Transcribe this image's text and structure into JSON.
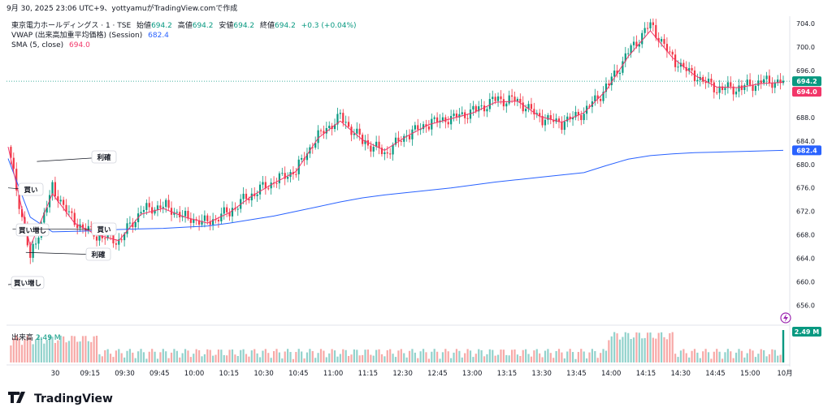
{
  "header": {
    "credit": "9月 30, 2025 23:06 UTC+9、yottyamuがTradingView.comで作成"
  },
  "legend": {
    "symbol": "東京電力ホールディングス · 1 · TSE",
    "open_label": "始値",
    "open": "694.2",
    "high_label": "高値",
    "high": "694.2",
    "low_label": "安値",
    "low": "694.2",
    "close_label": "終値",
    "close": "694.2",
    "change": "+0.3 (+0.04%)",
    "vwap_label": "VWAP (出来高加重平均価格) (Session)",
    "vwap_value": "682.4",
    "sma_label": "SMA (5, close)",
    "sma_value": "694.0"
  },
  "volume_legend": {
    "label": "出来高",
    "value": "2.49 M"
  },
  "price_badges": {
    "last": "694.2",
    "sma": "694.0",
    "vwap": "682.4",
    "volume": "2.49 M"
  },
  "colors": {
    "up": "#089981",
    "down": "#f23645",
    "vwap": "#2962ff",
    "sma": "#f23669",
    "volume_up": "#92d2cc",
    "volume_down": "#f7a9a7"
  },
  "logo": {
    "text": "TradingView"
  },
  "annotations": [
    {
      "text": "利確",
      "time": "09:13",
      "price": 680.5
    },
    {
      "text": "買い",
      "time": "09:00",
      "price": 676.0
    },
    {
      "text": "買い増し",
      "time": "09:02",
      "price": 669.0
    },
    {
      "text": "買い",
      "time": "09:11",
      "price": 669.0
    },
    {
      "text": "利確",
      "time": "09:08",
      "price": 665.0
    },
    {
      "text": "買い増し",
      "time": "09:00",
      "price": 659.5
    }
  ],
  "chart_data": {
    "type": "line",
    "title": "東京電力ホールディングス · 1 · TSE",
    "xlabel": "",
    "ylabel": "",
    "ylim": [
      653,
      705
    ],
    "yticks": [
      656.0,
      660.0,
      664.0,
      668.0,
      672.0,
      676.0,
      680.0,
      684.0,
      688.0,
      692.0,
      696.0,
      700.0,
      704.0
    ],
    "xticks": [
      "30",
      "09:15",
      "09:30",
      "09:45",
      "10:00",
      "10:15",
      "10:30",
      "10:45",
      "11:00",
      "11:15",
      "12:30",
      "12:45",
      "13:00",
      "13:15",
      "13:30",
      "13:45",
      "14:00",
      "14:15",
      "14:30",
      "14:45",
      "15:00",
      "10月"
    ],
    "x": [
      "09:00",
      "09:10",
      "09:20",
      "09:30",
      "09:40",
      "09:50",
      "10:00",
      "10:10",
      "10:20",
      "10:30",
      "10:40",
      "10:50",
      "11:00",
      "11:10",
      "11:20",
      "11:30",
      "12:35",
      "12:45",
      "12:55",
      "13:05",
      "13:15",
      "13:25",
      "13:35",
      "13:45",
      "13:55",
      "14:05",
      "14:15",
      "14:22",
      "14:30",
      "14:38",
      "14:45",
      "14:52",
      "15:00",
      "15:10",
      "15:20",
      "15:30"
    ],
    "series": [
      {
        "name": "東京電力ホールディングス",
        "values": [
          683,
          664,
          676,
          670,
          668,
          667,
          672,
          673,
          671,
          670,
          672,
          675,
          677,
          679,
          685,
          688,
          684,
          682,
          685,
          687,
          688,
          689,
          691,
          691,
          688,
          687,
          689,
          693,
          699,
          704,
          698,
          695,
          693,
          693,
          694,
          694.2
        ]
      },
      {
        "name": "VWAP",
        "values": [
          681,
          671,
          668.5,
          668.6,
          668.7,
          668.9,
          669,
          669.1,
          669.3,
          669.5,
          670,
          670.6,
          671.2,
          672,
          672.8,
          673.6,
          674.3,
          674.8,
          675.2,
          675.6,
          676,
          676.5,
          677,
          677.4,
          677.8,
          678.2,
          678.6,
          679.8,
          680.9,
          681.5,
          681.8,
          682,
          682.1,
          682.2,
          682.3,
          682.4
        ]
      },
      {
        "name": "SMA",
        "values": [
          683,
          666,
          675,
          670,
          668,
          667,
          671.5,
          672.5,
          671,
          670,
          671.8,
          674.6,
          676.8,
          678.8,
          684.5,
          687.4,
          684.2,
          682.4,
          684.8,
          686.8,
          687.8,
          688.8,
          690.6,
          690.8,
          688.2,
          687.2,
          688.8,
          692.6,
          698.4,
          702.8,
          698.2,
          695.2,
          693.2,
          693.1,
          693.8,
          694.0
        ]
      }
    ],
    "volume_series": {
      "name": "出来高",
      "unit": "M",
      "last": 2.49
    },
    "last_price": 694.2,
    "grid": false,
    "legend_position": "top-left"
  }
}
